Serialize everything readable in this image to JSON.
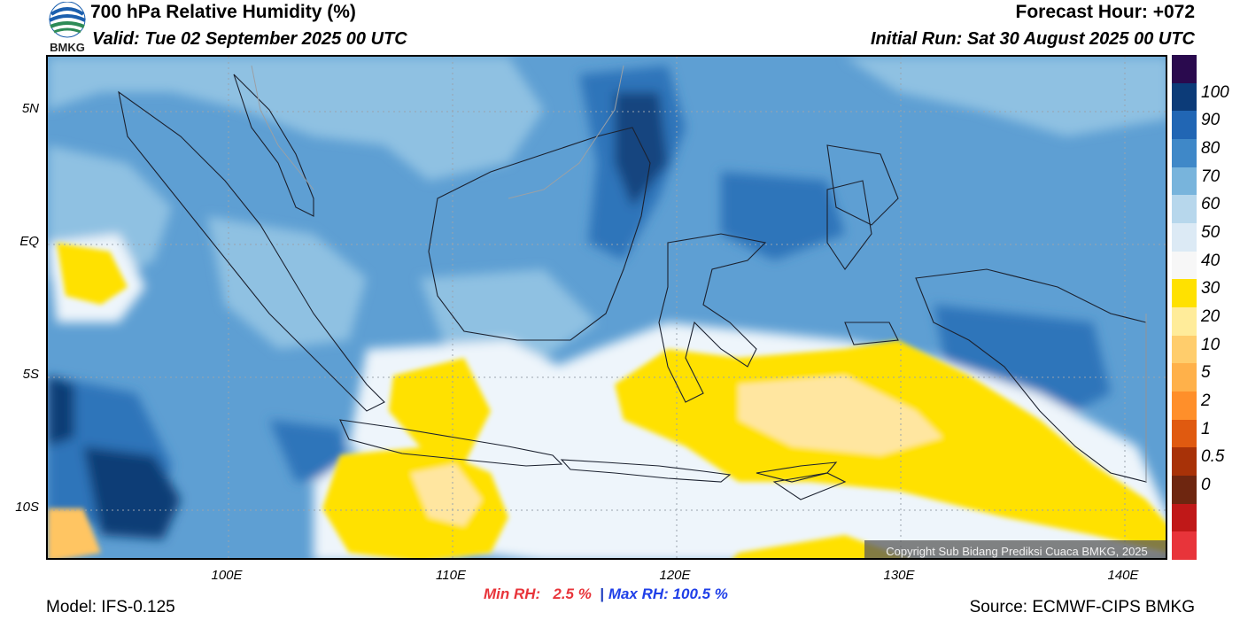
{
  "header": {
    "title": "700 hPa Relative Humidity (%)",
    "valid": "Valid: Tue 02 September 2025 00 UTC",
    "forecast_hour": "Forecast Hour: +072",
    "initial_run": "Initial Run: Sat 30 August 2025 00 UTC",
    "logo_text": "BMKG"
  },
  "axes": {
    "lat_labels": [
      "5N",
      "EQ",
      "5S",
      "10S"
    ],
    "lon_labels": [
      "100E",
      "110E",
      "120E",
      "130E",
      "140E"
    ]
  },
  "colorbar": {
    "labels": [
      "100",
      "90",
      "80",
      "70",
      "60",
      "50",
      "40",
      "30",
      "20",
      "10",
      "5",
      "2",
      "1",
      "0.5",
      "0"
    ],
    "colors": [
      "#2a0a4e",
      "#0c3b78",
      "#2166b4",
      "#3f88c8",
      "#78b4dc",
      "#b7d7ec",
      "#dceaf5",
      "#f7f7f7",
      "#ffe100",
      "#ffec9a",
      "#ffcd6c",
      "#ffb14a",
      "#ff8f2a",
      "#e05a10",
      "#a83208",
      "#6e2610",
      "#c01818",
      "#e8343a"
    ]
  },
  "stats": {
    "min": "Min RH:   2.5 %",
    "separator": "|",
    "max": "Max RH: 100.5 %"
  },
  "footer": {
    "model": "Model: IFS-0.125",
    "source": "Source: ECMWF-CIPS BMKG",
    "copyright": "Copyright Sub Bidang Prediksi Cuaca BMKG, 2025"
  }
}
